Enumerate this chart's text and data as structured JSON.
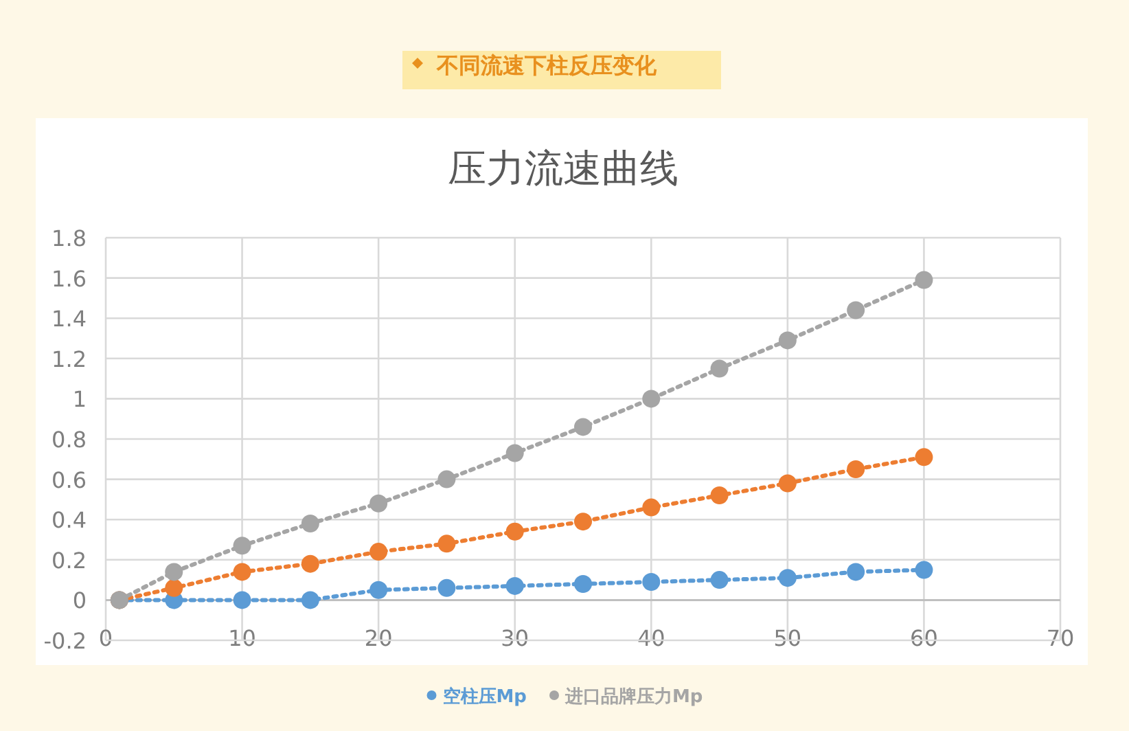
{
  "chart_data": {
    "type": "line",
    "title": "不同流速下柱反压变化",
    "subtitle": "压力流速曲线",
    "x": [
      1,
      5,
      10,
      15,
      20,
      25,
      30,
      35,
      40,
      45,
      50,
      55,
      60
    ],
    "series": [
      {
        "name": "空柱压Mp",
        "color": "#5b9bd5",
        "values": [
          0,
          0,
          0,
          0,
          0.05,
          0.06,
          0.07,
          0.08,
          0.09,
          0.1,
          0.11,
          0.14,
          0.15
        ]
      },
      {
        "color": "#ed7d31",
        "values": [
          0,
          0.06,
          0.14,
          0.18,
          0.24,
          0.28,
          0.34,
          0.39,
          0.46,
          0.52,
          0.58,
          0.65,
          0.71
        ]
      },
      {
        "name": "进口品牌压力Mp",
        "color": "#a5a5a5",
        "values": [
          0,
          0.14,
          0.27,
          0.38,
          0.48,
          0.6,
          0.73,
          0.86,
          1.0,
          1.15,
          1.29,
          1.44,
          1.59
        ]
      }
    ],
    "xlim": [
      0,
      70
    ],
    "xticks": [
      0,
      10,
      20,
      30,
      40,
      50,
      60,
      70
    ],
    "ylim": [
      -0.2,
      1.8
    ],
    "yticks": [
      -0.2,
      0,
      0.2,
      0.4,
      0.6,
      0.8,
      1,
      1.2,
      1.4,
      1.6,
      1.8
    ],
    "grid": true,
    "legend": "bottom",
    "marker": "circle",
    "line_style": "dotted"
  }
}
